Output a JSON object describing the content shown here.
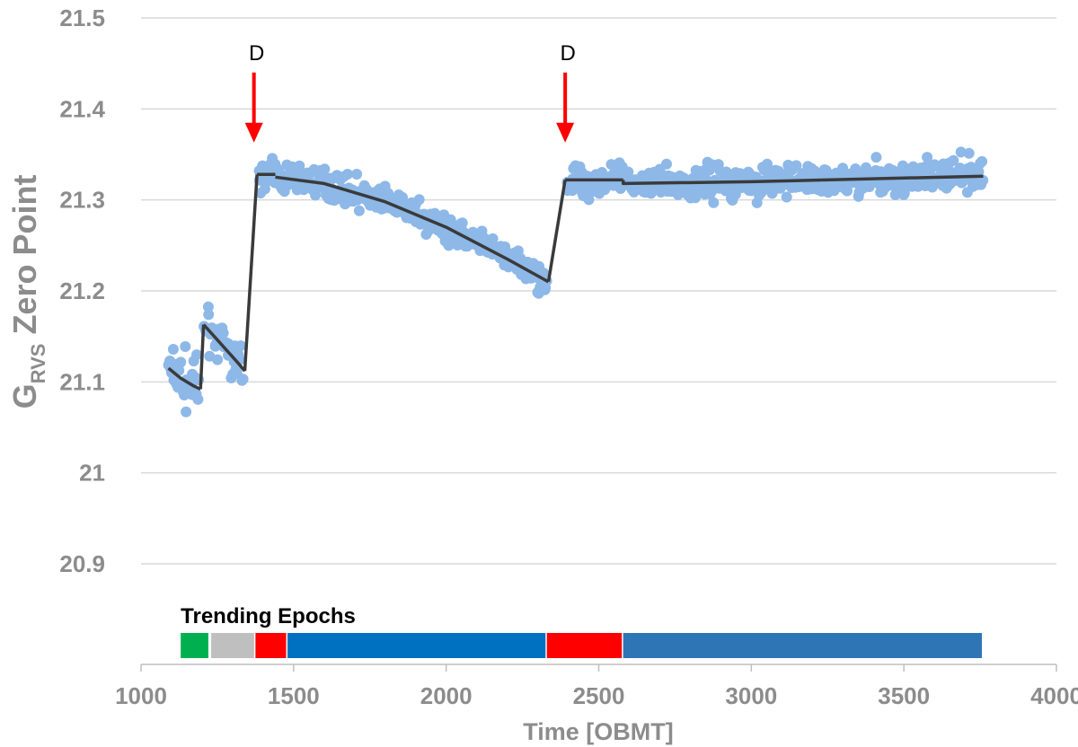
{
  "chart_data": {
    "type": "scatter",
    "xlabel": "Time [OBMT]",
    "ylabel": {
      "main": "G",
      "sub": "RVS",
      "rest": " Zero Point"
    },
    "xlim": [
      1000,
      4000
    ],
    "ylim": [
      20.85,
      21.5
    ],
    "x_ticks": [
      "1000",
      "1500",
      "2000",
      "2500",
      "3000",
      "3500",
      "4000"
    ],
    "y_ticks": [
      "20.9",
      "21",
      "21.1",
      "21.2",
      "21.3",
      "21.4",
      "21.5"
    ],
    "grid": true,
    "colors": {
      "points": "#8db8e8",
      "fit": "#3a3a3a",
      "arrow": "#ff0000",
      "grid": "#d9d9d9"
    },
    "fit_segments": [
      {
        "x": [
          1090,
          1130,
          1170,
          1195
        ],
        "y": [
          21.115,
          21.104,
          21.096,
          21.092
        ]
      },
      {
        "x": [
          1195,
          1205
        ],
        "y": [
          21.092,
          21.163
        ]
      },
      {
        "x": [
          1205,
          1240,
          1280,
          1320,
          1340
        ],
        "y": [
          21.163,
          21.15,
          21.135,
          21.12,
          21.112
        ]
      },
      {
        "x": [
          1340,
          1380
        ],
        "y": [
          21.112,
          21.328
        ]
      },
      {
        "x": [
          1380,
          1440
        ],
        "y": [
          21.328,
          21.328
        ]
      },
      {
        "x": [
          1440,
          1600,
          1800,
          2000,
          2200,
          2335
        ],
        "y": [
          21.325,
          21.318,
          21.298,
          21.27,
          21.235,
          21.21
        ]
      },
      {
        "x": [
          2335,
          2390
        ],
        "y": [
          21.21,
          21.322
        ]
      },
      {
        "x": [
          2390,
          2580
        ],
        "y": [
          21.322,
          21.322
        ]
      },
      {
        "x": [
          2580,
          2580,
          3000,
          3500,
          3760
        ],
        "y": [
          21.322,
          21.318,
          21.32,
          21.324,
          21.326
        ]
      }
    ],
    "annotations": [
      {
        "label": "D",
        "x": 1370,
        "y_from": 21.44,
        "y_to": 21.365
      },
      {
        "label": "D",
        "x": 2390,
        "y_from": 21.44,
        "y_to": 21.365
      }
    ],
    "trending_epochs": {
      "title": "Trending Epochs",
      "segments": [
        {
          "x0": 1130,
          "x1": 1225,
          "color": "#00b050"
        },
        {
          "x0": 1230,
          "x1": 1375,
          "color": "#bfbfbf"
        },
        {
          "x0": 1375,
          "x1": 1480,
          "color": "#ff0000"
        },
        {
          "x0": 1480,
          "x1": 2330,
          "color": "#0070c0"
        },
        {
          "x0": 2330,
          "x1": 2580,
          "color": "#ff0000"
        },
        {
          "x0": 2580,
          "x1": 3760,
          "color": "#2e75b6"
        }
      ]
    }
  }
}
